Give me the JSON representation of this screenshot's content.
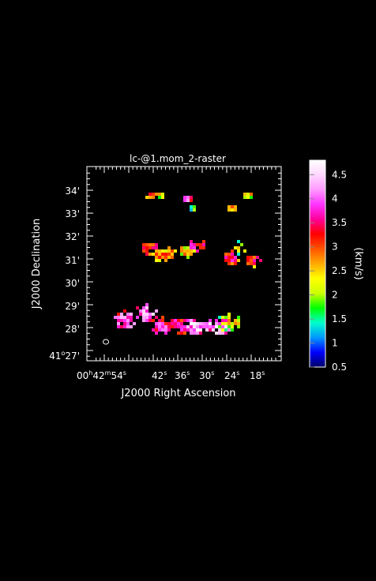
{
  "chart_data": {
    "type": "heatmap",
    "title": "lc-@1.mom_2-raster",
    "xlabel": "J2000 Right Ascension",
    "ylabel": "J2000 Declination",
    "x_ticks": [
      {
        "h": "00",
        "m": "42",
        "s": "54",
        "prefix": true
      },
      {
        "s": "42"
      },
      {
        "s": "36"
      },
      {
        "s": "30"
      },
      {
        "s": "24"
      },
      {
        "s": "18"
      }
    ],
    "y_ticks": [
      {
        "text": "34'"
      },
      {
        "text": "33'"
      },
      {
        "text": "32'"
      },
      {
        "text": "31'"
      },
      {
        "text": "30'"
      },
      {
        "text": "29'"
      },
      {
        "text": "28'"
      },
      {
        "deg": "41",
        "min": "27'"
      }
    ],
    "colorbar": {
      "label": "(km/s)",
      "range": [
        0.5,
        4.8
      ],
      "ticks": [
        "4.5",
        "4",
        "3.5",
        "3",
        "2.5",
        "2",
        "1.5",
        "1",
        "0.5"
      ],
      "tick_values": [
        4.5,
        4,
        3.5,
        3,
        2.5,
        2,
        1.5,
        1,
        0.5
      ],
      "colors": [
        "#000066",
        "#0000ff",
        "#0099ff",
        "#00ffcc",
        "#00ff00",
        "#ccff00",
        "#ffff00",
        "#ffaa00",
        "#ff5500",
        "#ff0000",
        "#ff0099",
        "#ff33ff",
        "#ff99ff",
        "#ffd6ff",
        "#ffffff"
      ]
    },
    "clumps": [
      {
        "region": "north",
        "ra_s": 43.6,
        "dec_min": 33.85,
        "value": 3.1
      },
      {
        "region": "north",
        "ra_s": 41.3,
        "dec_min": 33.9,
        "value": 2.5
      },
      {
        "region": "north",
        "ra_s": 34.2,
        "dec_min": 33.7,
        "value": 4.0
      },
      {
        "region": "north",
        "ra_s": 32.5,
        "dec_min": 33.35,
        "value": 1.8
      },
      {
        "region": "north",
        "ra_s": 19.7,
        "dec_min": 33.85,
        "value": 2.7
      },
      {
        "region": "north",
        "ra_s": 23.3,
        "dec_min": 33.25,
        "value": 3.0
      },
      {
        "region": "middle",
        "ra_s": 43.5,
        "dec_min": 31.6,
        "value": 3.5
      },
      {
        "region": "middle",
        "ra_s": 41.0,
        "dec_min": 31.25,
        "value": 3.2
      },
      {
        "region": "middle",
        "ra_s": 38.2,
        "dec_min": 31.2,
        "value": 2.8
      },
      {
        "region": "middle",
        "ra_s": 33.5,
        "dec_min": 31.35,
        "value": 2.6
      },
      {
        "region": "middle",
        "ra_s": 31.2,
        "dec_min": 31.7,
        "value": 3.6
      },
      {
        "region": "middle",
        "ra_s": 21.4,
        "dec_min": 31.55,
        "value": 2.4
      },
      {
        "region": "middle",
        "ra_s": 23.3,
        "dec_min": 31.15,
        "value": 3.4
      },
      {
        "region": "middle",
        "ra_s": 17.8,
        "dec_min": 30.95,
        "value": 3.3
      },
      {
        "region": "south",
        "ra_s": 49.0,
        "dec_min": 28.35,
        "value": 4.2
      },
      {
        "region": "south",
        "ra_s": 44.0,
        "dec_min": 28.7,
        "value": 4.3
      },
      {
        "region": "south",
        "ra_s": 40.2,
        "dec_min": 28.2,
        "value": 3.8
      },
      {
        "region": "south",
        "ra_s": 36.0,
        "dec_min": 28.15,
        "value": 3.7
      },
      {
        "region": "south",
        "ra_s": 31.6,
        "dec_min": 28.1,
        "value": 4.4
      },
      {
        "region": "south",
        "ra_s": 26.5,
        "dec_min": 28.2,
        "value": 4.5
      },
      {
        "region": "south",
        "ra_s": 23.5,
        "dec_min": 28.25,
        "value": 2.5
      }
    ]
  }
}
